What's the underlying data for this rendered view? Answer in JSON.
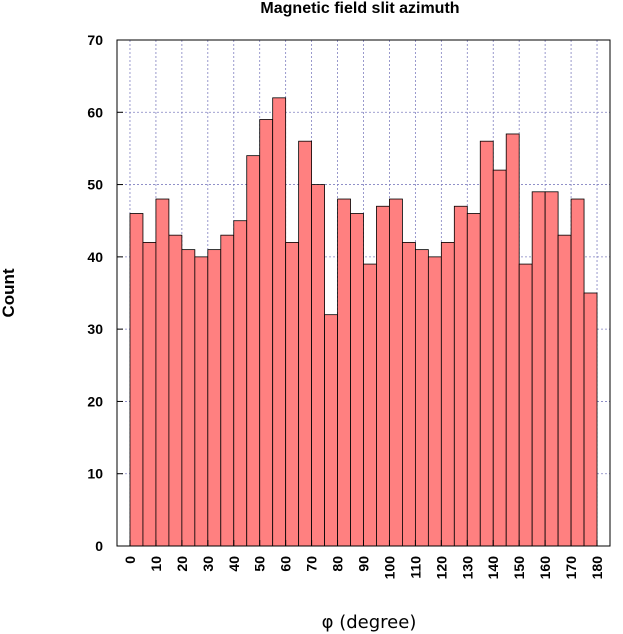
{
  "chart_data": {
    "type": "bar",
    "title": "Magnetic field slit azimuth",
    "xlabel": "φ (degree)",
    "ylabel": "Count",
    "bin_width": 5,
    "bin_starts": [
      0,
      5,
      10,
      15,
      20,
      25,
      30,
      35,
      40,
      45,
      50,
      55,
      60,
      65,
      70,
      75,
      80,
      85,
      90,
      95,
      100,
      105,
      110,
      115,
      120,
      125,
      130,
      135,
      140,
      145,
      150,
      155,
      160,
      165,
      170,
      175
    ],
    "values": [
      46,
      42,
      48,
      43,
      41,
      40,
      41,
      43,
      45,
      54,
      59,
      62,
      42,
      56,
      50,
      32,
      48,
      46,
      39,
      47,
      48,
      42,
      41,
      40,
      42,
      47,
      46,
      56,
      52,
      57,
      39,
      49,
      49,
      43,
      48,
      35
    ],
    "xlim": [
      -5,
      185
    ],
    "ylim": [
      0,
      70
    ],
    "yticks": [
      0,
      10,
      20,
      30,
      40,
      50,
      60,
      70
    ],
    "xticks": [
      0,
      10,
      20,
      30,
      40,
      50,
      60,
      70,
      80,
      90,
      100,
      110,
      120,
      130,
      140,
      150,
      160,
      170,
      180
    ],
    "grid": true,
    "bar_color": "#ff8080",
    "bar_edge_color": "#000000",
    "grid_color": "#8080c0"
  }
}
